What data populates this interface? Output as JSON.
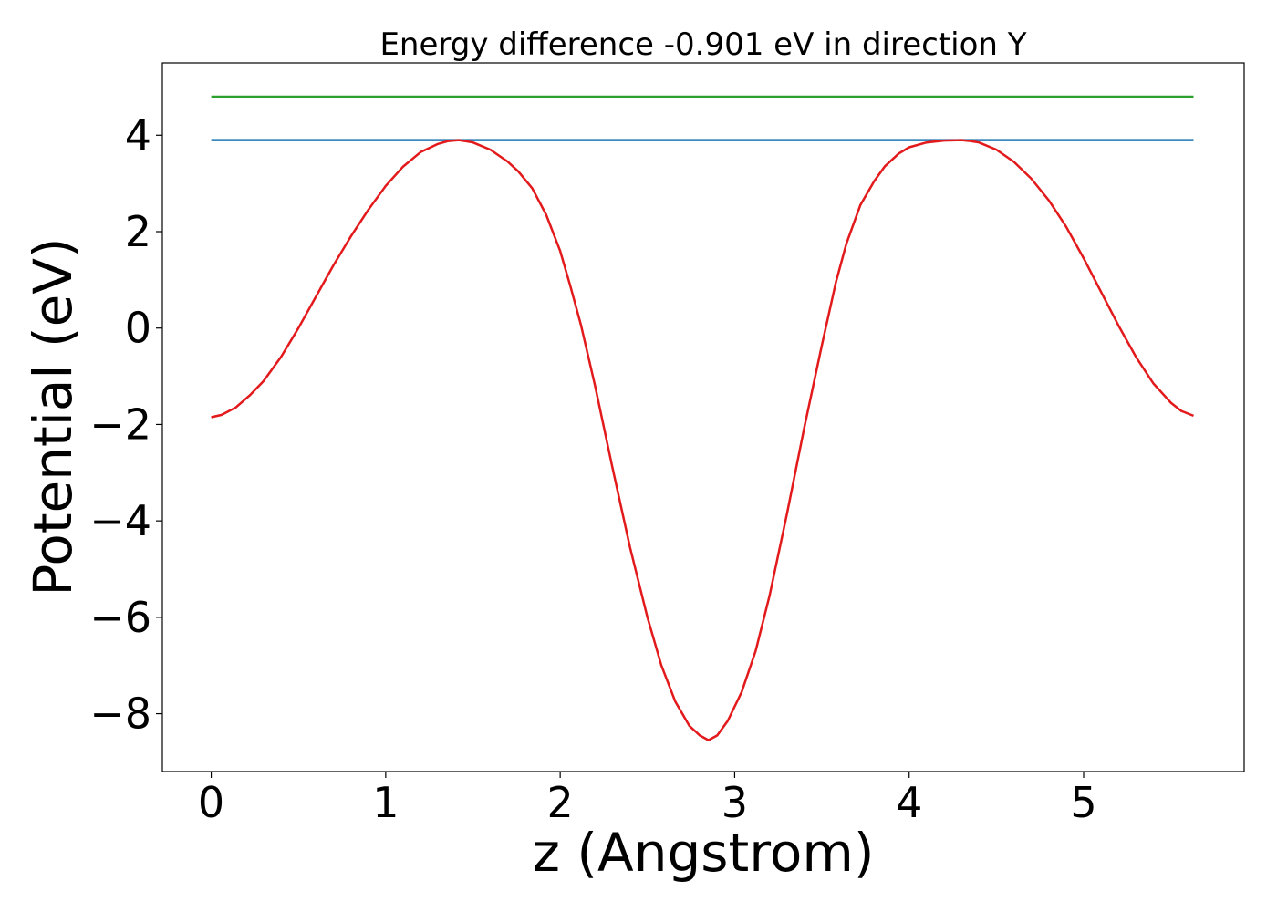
{
  "chart_data": {
    "type": "line",
    "title": "Energy difference -0.901 eV in direction Y",
    "xlabel": "z (Angstrom)",
    "ylabel": "Potential (eV)",
    "xlim": [
      -0.28,
      5.92
    ],
    "ylim": [
      -9.2,
      5.5
    ],
    "xticks": [
      0,
      1,
      2,
      3,
      4,
      5
    ],
    "xtick_labels": [
      "0",
      "1",
      "2",
      "3",
      "4",
      "5"
    ],
    "yticks": [
      -8,
      -6,
      -4,
      -2,
      0,
      2,
      4
    ],
    "ytick_labels": [
      "−8",
      "−6",
      "−4",
      "−2",
      "0",
      "2",
      "4"
    ],
    "grid": false,
    "series": [
      {
        "color": "#2ca02c",
        "x": [
          0,
          5.63
        ],
        "y": [
          4.8,
          4.8
        ]
      },
      {
        "color": "#1f77b4",
        "x": [
          0,
          5.63
        ],
        "y": [
          3.9,
          3.9
        ]
      },
      {
        "color": "#e31a1c",
        "x": [
          0.0,
          0.06,
          0.14,
          0.22,
          0.3,
          0.4,
          0.5,
          0.6,
          0.7,
          0.8,
          0.9,
          1.0,
          1.1,
          1.2,
          1.3,
          1.36,
          1.42,
          1.5,
          1.6,
          1.7,
          1.76,
          1.84,
          1.92,
          2.0,
          2.06,
          2.12,
          2.2,
          2.3,
          2.4,
          2.5,
          2.58,
          2.66,
          2.74,
          2.8,
          2.85,
          2.9,
          2.96,
          3.04,
          3.12,
          3.2,
          3.3,
          3.4,
          3.5,
          3.58,
          3.64,
          3.72,
          3.8,
          3.86,
          3.94,
          4.0,
          4.1,
          4.2,
          4.3,
          4.35,
          4.4,
          4.5,
          4.6,
          4.7,
          4.8,
          4.9,
          5.0,
          5.1,
          5.2,
          5.3,
          5.4,
          5.5,
          5.56,
          5.63
        ],
        "y": [
          -1.85,
          -1.8,
          -1.65,
          -1.4,
          -1.1,
          -0.6,
          0.0,
          0.65,
          1.3,
          1.9,
          2.45,
          2.95,
          3.35,
          3.65,
          3.82,
          3.88,
          3.9,
          3.85,
          3.7,
          3.45,
          3.25,
          2.9,
          2.35,
          1.6,
          0.85,
          0.05,
          -1.2,
          -2.9,
          -4.55,
          -6.0,
          -7.0,
          -7.75,
          -8.25,
          -8.45,
          -8.55,
          -8.45,
          -8.15,
          -7.55,
          -6.7,
          -5.55,
          -3.85,
          -2.05,
          -0.35,
          0.95,
          1.75,
          2.55,
          3.05,
          3.35,
          3.62,
          3.75,
          3.85,
          3.89,
          3.9,
          3.88,
          3.85,
          3.7,
          3.45,
          3.1,
          2.65,
          2.1,
          1.45,
          0.75,
          0.05,
          -0.6,
          -1.15,
          -1.55,
          -1.72,
          -1.82
        ]
      }
    ]
  }
}
